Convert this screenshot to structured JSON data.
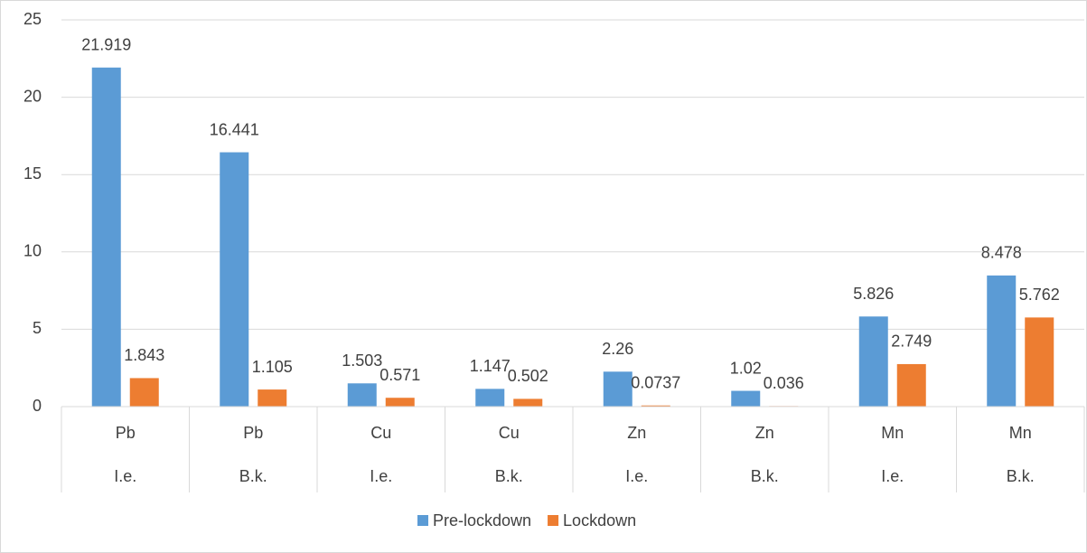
{
  "chart_data": {
    "type": "bar",
    "categories": [
      "Pb",
      "Pb",
      "Cu",
      "Cu",
      "Zn",
      "Zn",
      "Mn",
      "Mn"
    ],
    "category_groups": [
      "I.e.",
      "B.k.",
      "I.e.",
      "B.k.",
      "I.e.",
      "B.k.",
      "I.e.",
      "B.k."
    ],
    "series": [
      {
        "name": "Pre-lockdown",
        "color": "#5b9bd5",
        "values": [
          21.919,
          16.441,
          1.503,
          1.147,
          2.26,
          1.02,
          5.826,
          8.478
        ]
      },
      {
        "name": "Lockdown",
        "color": "#ed7d31",
        "values": [
          1.843,
          1.105,
          0.571,
          0.502,
          0.0737,
          0.036,
          2.749,
          5.762
        ]
      }
    ],
    "ylim": [
      0,
      25
    ],
    "yticks": [
      0,
      5,
      10,
      15,
      20,
      25
    ],
    "grid": true,
    "legend": "bottom"
  }
}
